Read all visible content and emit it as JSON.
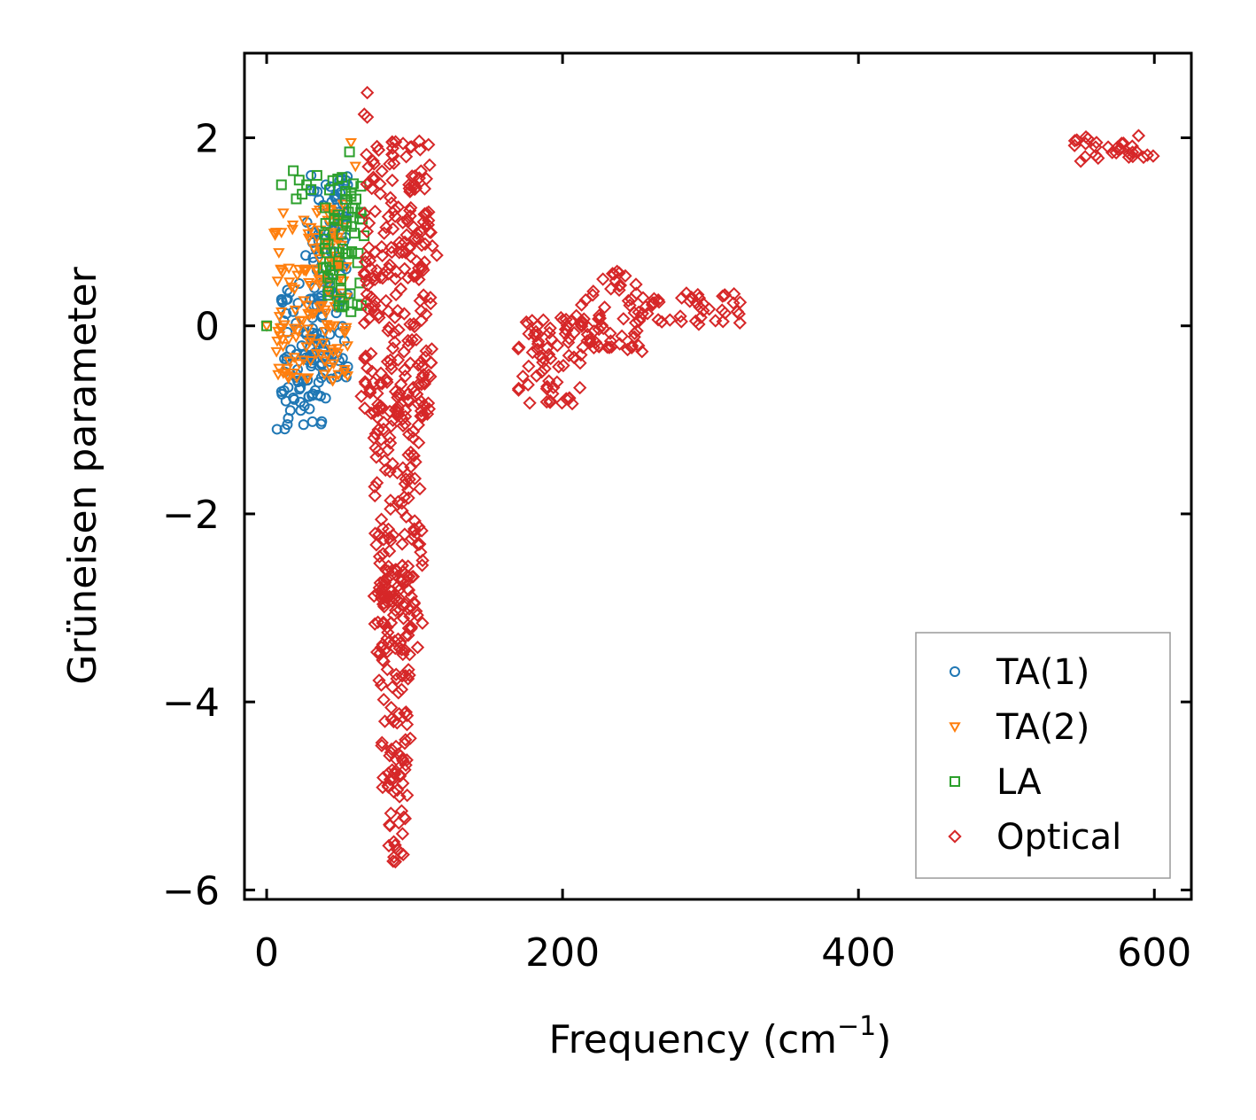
{
  "chart_data": {
    "type": "scatter",
    "xlabel": "Frequency (cm",
    "xlabel_sup": "−1",
    "xlabel_close": ")",
    "ylabel": "Grüneisen parameter",
    "xlim": [
      -15,
      625
    ],
    "ylim": [
      -6.1,
      2.9
    ],
    "xticks": [
      0,
      200,
      400,
      600
    ],
    "xtick_labels": [
      "0",
      "200",
      "400",
      "600"
    ],
    "yticks": [
      -6,
      -4,
      -2,
      0,
      2
    ],
    "ytick_labels": [
      "−6",
      "−4",
      "−2",
      "0",
      "2"
    ],
    "legend_position": "lower-right",
    "series": [
      {
        "name": "TA(1)",
        "marker": "circle",
        "color": "#1f77b4",
        "clusters": [
          {
            "x": [
              10,
              40
            ],
            "y": [
              -1.1,
              0.4
            ]
          },
          {
            "x": [
              25,
              55
            ],
            "y": [
              -0.6,
              1.6
            ]
          }
        ],
        "points": [
          [
            7,
            -1.1
          ],
          [
            14,
            -1.05
          ],
          [
            10,
            -0.7
          ],
          [
            13,
            -0.8
          ],
          [
            16,
            -0.9
          ],
          [
            20,
            -0.55
          ],
          [
            23,
            -0.9
          ],
          [
            12,
            -0.35
          ],
          [
            18,
            0.15
          ],
          [
            14,
            0.38
          ],
          [
            22,
            0.45
          ],
          [
            30,
            1.6
          ],
          [
            40,
            1.5
          ],
          [
            48,
            1.3
          ],
          [
            52,
            1.5
          ]
        ]
      },
      {
        "name": "TA(2)",
        "marker": "triangle-down",
        "color": "#ff7f0e",
        "clusters": [
          {
            "x": [
              5,
              55
            ],
            "y": [
              -0.6,
              1.3
            ]
          }
        ],
        "points": [
          [
            0,
            0.0
          ],
          [
            10,
            0.15
          ],
          [
            14,
            -0.45
          ],
          [
            18,
            -0.5
          ],
          [
            22,
            -0.4
          ],
          [
            28,
            -0.55
          ],
          [
            44,
            1.2
          ],
          [
            57,
            1.95
          ],
          [
            60,
            1.7
          ]
        ]
      },
      {
        "name": "LA",
        "marker": "square",
        "color": "#2ca02c",
        "clusters": [
          {
            "x": [
              38,
              66
            ],
            "y": [
              0.2,
              1.6
            ]
          }
        ],
        "points": [
          [
            0,
            0.0
          ],
          [
            10,
            1.5
          ],
          [
            18,
            1.65
          ],
          [
            22,
            1.55
          ],
          [
            24,
            1.4
          ],
          [
            20,
            1.35
          ],
          [
            27,
            1.5
          ],
          [
            30,
            1.45
          ],
          [
            34,
            1.6
          ],
          [
            56,
            1.85
          ],
          [
            57,
            0.15
          ]
        ]
      },
      {
        "name": "Optical",
        "marker": "diamond",
        "color": "#d62728",
        "clusters": [
          {
            "x": [
              66,
              112
            ],
            "y": [
              -1.0,
              2.0
            ]
          },
          {
            "x": [
              72,
              106
            ],
            "y": [
              -3.5,
              -0.5
            ]
          },
          {
            "x": [
              76,
              98
            ],
            "y": [
              -5.0,
              -2.5
            ]
          },
          {
            "x": [
              82,
              94
            ],
            "y": [
              -5.7,
              -4.5
            ]
          },
          {
            "x": [
              170,
              215
            ],
            "y": [
              -0.85,
              0.15
            ]
          },
          {
            "x": [
              212,
              255
            ],
            "y": [
              -0.3,
              0.6
            ]
          },
          {
            "x": [
              250,
              322
            ],
            "y": [
              0.0,
              0.35
            ]
          },
          {
            "x": [
              545,
              600
            ],
            "y": [
              1.75,
              2.05
            ]
          }
        ],
        "points": [
          [
            68,
            2.48
          ],
          [
            66,
            2.25
          ],
          [
            68,
            2.22
          ],
          [
            85,
            1.95
          ],
          [
            97,
            1.9
          ],
          [
            112,
            0.85
          ],
          [
            115,
            0.75
          ],
          [
            64,
            -0.75
          ],
          [
            86,
            -5.65
          ],
          [
            87,
            -5.7
          ],
          [
            320,
            0.25
          ],
          [
            290,
            0.05
          ]
        ]
      }
    ]
  }
}
